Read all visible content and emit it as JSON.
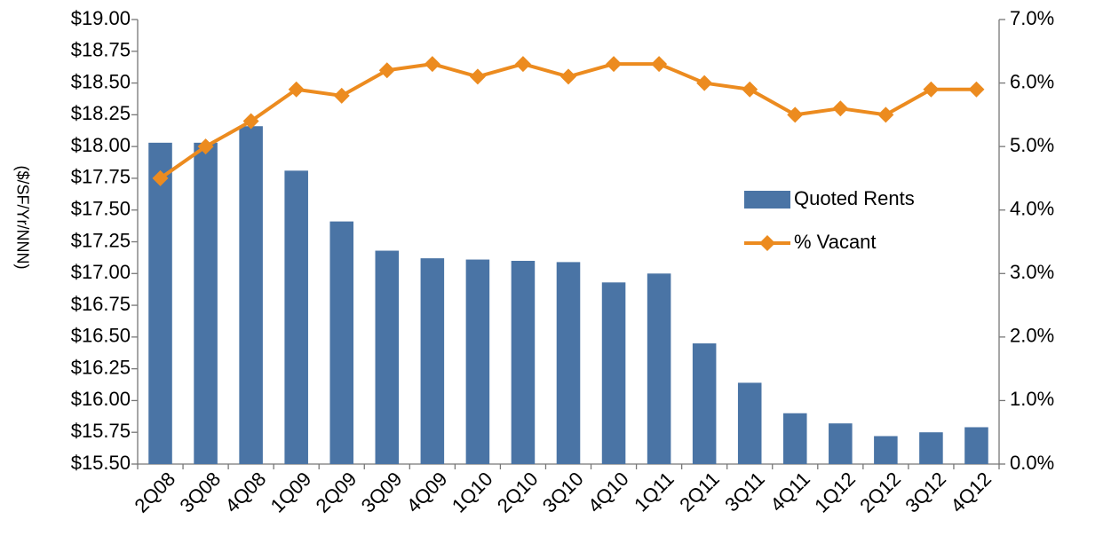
{
  "chart_data": {
    "type": "bar-line",
    "y_label": "($/SF/Yr/NNN)",
    "categories": [
      "2Q08",
      "3Q08",
      "4Q08",
      "1Q09",
      "2Q09",
      "3Q09",
      "4Q09",
      "1Q10",
      "2Q10",
      "3Q10",
      "4Q10",
      "1Q11",
      "2Q11",
      "3Q11",
      "4Q11",
      "1Q12",
      "2Q12",
      "3Q12",
      "4Q12"
    ],
    "series": [
      {
        "name": "Quoted Rents",
        "type": "bar",
        "color": "#4a74a5",
        "axis": "y",
        "values": [
          18.03,
          18.03,
          18.16,
          17.81,
          17.41,
          17.18,
          17.12,
          17.11,
          17.1,
          17.09,
          16.93,
          17.0,
          16.45,
          16.14,
          15.9,
          15.82,
          15.72,
          15.75,
          15.79
        ]
      },
      {
        "name": "% Vacant",
        "type": "line",
        "color": "#ec8b1f",
        "axis": "y2",
        "values": [
          4.5,
          5.0,
          5.4,
          5.9,
          5.8,
          6.2,
          6.3,
          6.1,
          6.3,
          6.1,
          6.3,
          6.3,
          6.0,
          5.9,
          5.5,
          5.6,
          5.5,
          5.9,
          5.9
        ]
      }
    ],
    "ylim": [
      15.5,
      19.0
    ],
    "yticks": [
      {
        "value": 15.5,
        "label": "$15.50"
      },
      {
        "value": 15.75,
        "label": "$15.75"
      },
      {
        "value": 16,
        "label": "$16.00"
      },
      {
        "value": 16.25,
        "label": "$16.25"
      },
      {
        "value": 16.5,
        "label": "$16.50"
      },
      {
        "value": 16.75,
        "label": "$16.75"
      },
      {
        "value": 17,
        "label": "$17.00"
      },
      {
        "value": 17.25,
        "label": "$17.25"
      },
      {
        "value": 17.5,
        "label": "$17.50"
      },
      {
        "value": 17.75,
        "label": "$17.75"
      },
      {
        "value": 18,
        "label": "$18.00"
      },
      {
        "value": 18.25,
        "label": "$18.25"
      },
      {
        "value": 18.5,
        "label": "$18.50"
      },
      {
        "value": 18.75,
        "label": "$18.75"
      },
      {
        "value": 19,
        "label": "$19.00"
      }
    ],
    "y2lim": [
      0,
      7
    ],
    "y2ticks": [
      {
        "value": 0,
        "label": "0.0%"
      },
      {
        "value": 1,
        "label": "1.0%"
      },
      {
        "value": 2,
        "label": "2.0%"
      },
      {
        "value": 3,
        "label": "3.0%"
      },
      {
        "value": 4,
        "label": "4.0%"
      },
      {
        "value": 5,
        "label": "5.0%"
      },
      {
        "value": 6,
        "label": "6.0%"
      },
      {
        "value": 7,
        "label": "7.0%"
      }
    ],
    "grid": false,
    "legend": "center-right"
  }
}
